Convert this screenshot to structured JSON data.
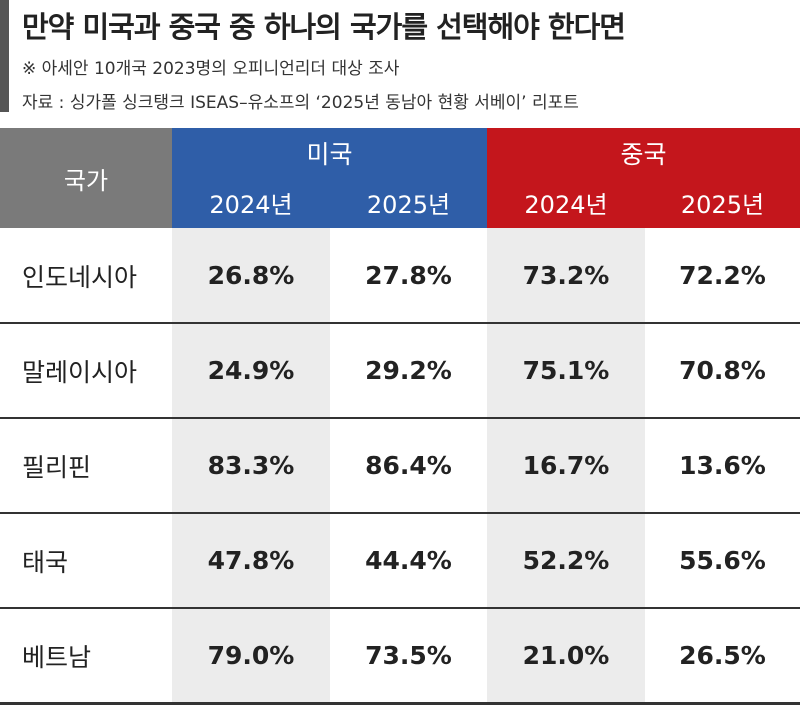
{
  "header": {
    "title": "만약 미국과 중국 중 하나의 국가를 선택해야 한다면",
    "notes": [
      "※  아세안 10개국 2023명의 오피니언리더 대상 조사",
      "자료 : 싱가폴 싱크탱크 ISEAS–유소프의 ‘2025년 동남아 현황 서베이’ 리포트"
    ]
  },
  "table": {
    "corner": "국가",
    "groups": [
      {
        "name": "미국",
        "color": "#2f5ea8",
        "years": [
          "2024년",
          "2025년"
        ]
      },
      {
        "name": "중국",
        "color": "#c4161c",
        "years": [
          "2024년",
          "2025년"
        ]
      }
    ],
    "rows": [
      [
        "인도네시아",
        "26.8%",
        "27.8%",
        "73.2%",
        "72.2%"
      ],
      [
        "말레이시아",
        "24.9%",
        "29.2%",
        "75.1%",
        "70.8%"
      ],
      [
        "필리핀",
        "83.3%",
        "86.4%",
        "16.7%",
        "13.6%"
      ],
      [
        "태국",
        "47.8%",
        "44.4%",
        "52.2%",
        "55.6%"
      ],
      [
        "베트남",
        "79.0%",
        "73.5%",
        "21.0%",
        "26.5%"
      ]
    ]
  }
}
